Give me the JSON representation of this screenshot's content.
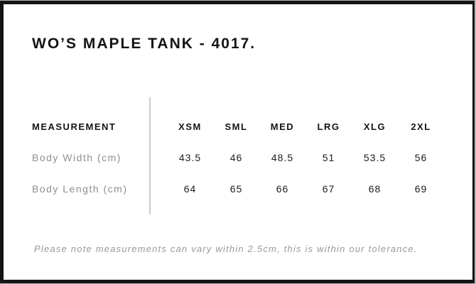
{
  "chart_data": {
    "type": "table",
    "title": "WO’S MAPLE TANK - 4017.",
    "columns": [
      "MEASUREMENT",
      "XSM",
      "SML",
      "MED",
      "LRG",
      "XLG",
      "2XL"
    ],
    "rows": [
      {
        "label": "Body Width (cm)",
        "values": [
          43.5,
          46,
          48.5,
          51,
          53.5,
          56
        ]
      },
      {
        "label": "Body Length (cm)",
        "values": [
          64,
          65,
          66,
          67,
          68,
          69
        ]
      }
    ],
    "note": "Please note measurements can vary within 2.5cm, this is within our tolerance.",
    "layout_hints": {
      "divider_between_label_and_sizes": true,
      "grid": false
    }
  },
  "colors": {
    "frame": "#141414",
    "text": "#1c1c1c",
    "muted_label": "#8e8e8e",
    "note_gray": "#999999",
    "divider": "#cccccc",
    "background": "#ffffff"
  }
}
